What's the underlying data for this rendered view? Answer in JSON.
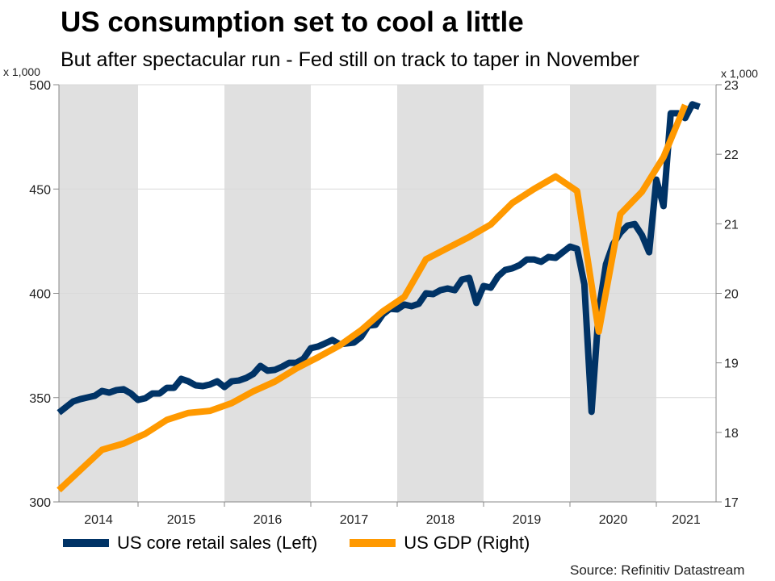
{
  "chart_data": {
    "type": "line",
    "title": "US consumption set to cool a little",
    "subtitle": "But after spectacular run - Fed still on track to taper in November",
    "source": "Source: Refinitiv Datastream",
    "y_left": {
      "unit_label": "x 1,000",
      "range": [
        300,
        500
      ],
      "ticks": [
        "500",
        "450",
        "400",
        "350",
        "300"
      ],
      "tick_values": [
        500,
        450,
        400,
        350,
        300
      ]
    },
    "y_right": {
      "unit_label": "x 1,000",
      "range": [
        17,
        23
      ],
      "ticks": [
        "23",
        "22",
        "21",
        "20",
        "19",
        "18",
        "17"
      ],
      "tick_values": [
        23,
        22,
        21,
        20,
        19,
        18,
        17
      ]
    },
    "x_axis": {
      "start": "2014-02",
      "end": "2021-08",
      "tick_labels": [
        "2014",
        "2015",
        "2016",
        "2017",
        "2018",
        "2019",
        "2020",
        "2021"
      ]
    },
    "shaded_years": [
      "2014",
      "2016",
      "2018",
      "2020"
    ],
    "grid": true,
    "legend_position": "bottom",
    "series": [
      {
        "name": "US core retail sales (Left)",
        "axis": "left",
        "color": "#003366",
        "frequency": "monthly",
        "start": "2014-02",
        "values": [
          342.8,
          345.5,
          348.2,
          349.3,
          350.1,
          350.9,
          353.2,
          352.4,
          353.6,
          354.0,
          352.0,
          348.9,
          349.7,
          352.0,
          352.0,
          354.7,
          354.7,
          359.0,
          357.8,
          355.9,
          355.5,
          356.3,
          357.8,
          355.1,
          357.8,
          358.2,
          359.4,
          361.3,
          365.2,
          362.9,
          363.3,
          364.8,
          366.7,
          366.7,
          368.7,
          373.7,
          374.5,
          376.0,
          377.6,
          375.6,
          376.0,
          376.4,
          379.1,
          384.5,
          384.9,
          389.9,
          392.6,
          392.3,
          394.6,
          393.8,
          395.0,
          400.0,
          399.6,
          401.5,
          402.3,
          401.5,
          406.6,
          407.4,
          395.4,
          403.5,
          402.7,
          408.1,
          411.2,
          412.0,
          413.5,
          416.2,
          416.2,
          415.1,
          417.4,
          417.0,
          419.7,
          422.4,
          421.3,
          404.3,
          343.2,
          391.5,
          413.9,
          423.6,
          429.0,
          432.5,
          433.2,
          427.9,
          419.7,
          454.5,
          441.8,
          486.3,
          486.3,
          484.0,
          490.6,
          489.4
        ]
      },
      {
        "name": "US GDP (Right)",
        "axis": "right",
        "color": "#ff9900",
        "frequency": "quarterly",
        "start": "2014-Q1",
        "values": [
          17.17,
          17.46,
          17.75,
          17.84,
          17.98,
          18.18,
          18.28,
          18.31,
          18.42,
          18.59,
          18.73,
          18.92,
          19.08,
          19.25,
          19.47,
          19.74,
          19.95,
          20.49,
          20.65,
          20.81,
          20.99,
          21.3,
          21.5,
          21.68,
          21.47,
          19.45,
          21.14,
          21.46,
          21.96,
          22.71
        ]
      }
    ]
  }
}
